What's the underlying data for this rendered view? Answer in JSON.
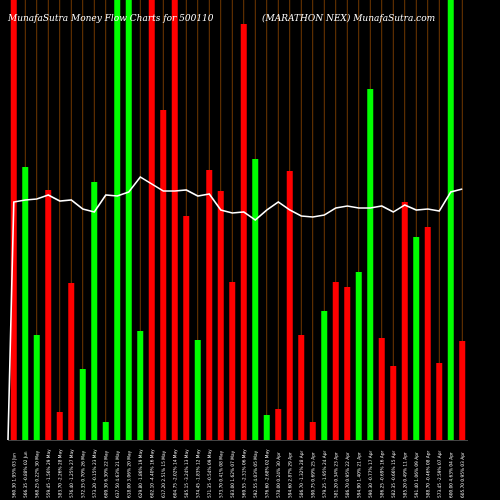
{
  "header": {
    "left_text": "MunafaSutra  Money Flow  Charts for 500110",
    "right_text": "(MARATHON   NEX) MunafaSutra.com"
  },
  "chart_data": {
    "type": "bar",
    "title": "",
    "xlabel": "",
    "ylabel": "",
    "ylim": [
      0,
      440
    ],
    "grid": "vertical",
    "legend": "none",
    "colors": {
      "up": "#00ff00",
      "down": "#ff0000",
      "line": "#ffffff",
      "grid": "#8b4500",
      "background": "#000000"
    },
    "bars": [
      {
        "label": "560.30 1.95% 03 Jun",
        "value": 440,
        "direction": "down"
      },
      {
        "label": "566.35 -0.88% 02 Jun",
        "value": 273,
        "direction": "up"
      },
      {
        "label": "568.25 0.22% 30 May",
        "value": 105,
        "direction": "up"
      },
      {
        "label": "559.45 -1.56% 29 May",
        "value": 250,
        "direction": "down"
      },
      {
        "label": "583.70 -2.26% 28 May",
        "value": 28,
        "direction": "down"
      },
      {
        "label": "576.40 -1.25% 27 May",
        "value": 157,
        "direction": "down"
      },
      {
        "label": "572.35 0.70% 26 May",
        "value": 71,
        "direction": "up"
      },
      {
        "label": "573.20 -0.15% 23 May",
        "value": 258,
        "direction": "up"
      },
      {
        "label": "609.30 6.30% 22 May",
        "value": 18,
        "direction": "up"
      },
      {
        "label": "637.50 4.63% 21 May",
        "value": 440,
        "direction": "up"
      },
      {
        "label": "618.00 3.06% 20 May",
        "value": 440,
        "direction": "up"
      },
      {
        "label": "629.80 -1.86% 19 May",
        "value": 109,
        "direction": "up"
      },
      {
        "label": "602.10 -4.40% 16 May",
        "value": 440,
        "direction": "down"
      },
      {
        "label": "617.20 2.51% 15 May",
        "value": 330,
        "direction": "down"
      },
      {
        "label": "604.75 -2.02% 14 May",
        "value": 440,
        "direction": "down"
      },
      {
        "label": "585.15 -3.24% 13 May",
        "value": 224,
        "direction": "down"
      },
      {
        "label": "574.45 -1.83% 12 May",
        "value": 100,
        "direction": "up"
      },
      {
        "label": "571.35 -0.54% 09 May",
        "value": 270,
        "direction": "down"
      },
      {
        "label": "573.70 0.41% 08 May",
        "value": 249,
        "direction": "down"
      },
      {
        "label": "583.00 1.62% 07 May",
        "value": 158,
        "direction": "down"
      },
      {
        "label": "569.55 -2.31% 06 May",
        "value": 416,
        "direction": "down"
      },
      {
        "label": "592.55 4.03% 05 May",
        "value": 281,
        "direction": "up"
      },
      {
        "label": "576.60 -2.68% 02 May",
        "value": 25,
        "direction": "up"
      },
      {
        "label": "578.00 0.24% 30 Apr",
        "value": 31,
        "direction": "down"
      },
      {
        "label": "594.60 2.87% 29 Apr",
        "value": 269,
        "direction": "down"
      },
      {
        "label": "586.70 -1.32% 28 Apr",
        "value": 105,
        "direction": "down"
      },
      {
        "label": "590.75 0.69% 25 Apr",
        "value": 18,
        "direction": "down"
      },
      {
        "label": "579.25 -1.95% 24 Apr",
        "value": 129,
        "direction": "up"
      },
      {
        "label": "581.20 0.34% 23 Apr",
        "value": 158,
        "direction": "down"
      },
      {
        "label": "586.70 0.95% 22 Apr",
        "value": 153,
        "direction": "down"
      },
      {
        "label": "594.90 1.40% 21 Apr",
        "value": 168,
        "direction": "up"
      },
      {
        "label": "590.30 -0.77% 17 Apr",
        "value": 351,
        "direction": "up"
      },
      {
        "label": "586.25 -0.69% 16 Apr",
        "value": 102,
        "direction": "down"
      },
      {
        "label": "582.35 -0.66% 15 Apr",
        "value": 74,
        "direction": "down"
      },
      {
        "label": "585.20 0.49% 11 Apr",
        "value": 238,
        "direction": "down"
      },
      {
        "label": "591.40 1.06% 09 Apr",
        "value": 203,
        "direction": "up"
      },
      {
        "label": "588.70 -0.46% 08 Apr",
        "value": 213,
        "direction": "down"
      },
      {
        "label": "573.45 -2.59% 07 Apr",
        "value": 77,
        "direction": "down"
      },
      {
        "label": "600.00 4.63% 04 Apr",
        "value": 440,
        "direction": "up"
      },
      {
        "label": "605.70 0.95% 03 Apr",
        "value": 99,
        "direction": "down"
      }
    ],
    "line": {
      "values": [
        238,
        240,
        241,
        245,
        239,
        240,
        231,
        228,
        245,
        244,
        248,
        263,
        256,
        249,
        249,
        250,
        244,
        246,
        230,
        227,
        228,
        220,
        230,
        238,
        230,
        224,
        223,
        225,
        232,
        234,
        232,
        232,
        234,
        228,
        235,
        230,
        231,
        229,
        248,
        251
      ]
    }
  }
}
